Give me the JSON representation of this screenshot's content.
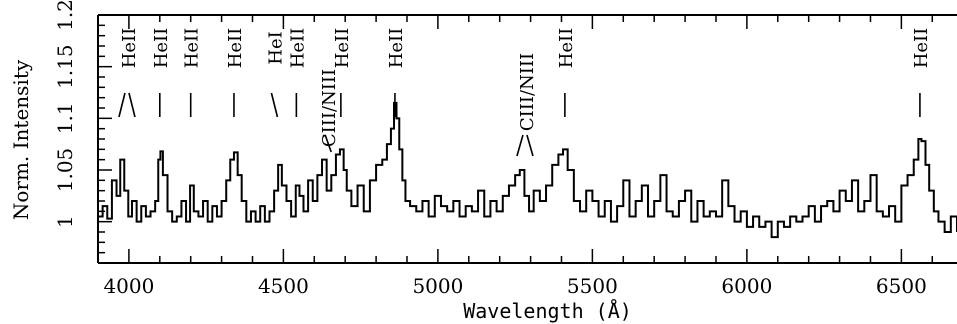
{
  "chart_data": {
    "type": "line",
    "title": "",
    "xlabel": "Wavelength (Å)",
    "ylabel": "Norm. Intensity",
    "xlim": [
      3900,
      6680
    ],
    "ylim": [
      0.96,
      1.2
    ],
    "x_ticks": [
      4000,
      4500,
      5000,
      5500,
      6000,
      6500
    ],
    "x_tick_labels": [
      "4000",
      "4500",
      "5000",
      "5500",
      "6000",
      "6500"
    ],
    "y_ticks": [
      1.0,
      1.05,
      1.1,
      1.15,
      1.2
    ],
    "y_tick_labels": [
      "1",
      "1.05",
      "1.1",
      "1.15",
      "1.2"
    ],
    "grid": false,
    "line_ids": [
      {
        "label": "HeII",
        "wavelengths": [
          3968,
          4026
        ],
        "mark": "pair"
      },
      {
        "label": "HeII",
        "wavelengths": [
          4100
        ],
        "mark": "vertical"
      },
      {
        "label": "HeII",
        "wavelengths": [
          4200
        ],
        "mark": "vertical"
      },
      {
        "label": "HeII",
        "wavelengths": [
          4340
        ],
        "mark": "vertical"
      },
      {
        "label": "HeI",
        "wavelengths": [
          4471
        ],
        "mark": "slant"
      },
      {
        "label": "HeII",
        "wavelengths": [
          4542
        ],
        "mark": "vertical"
      },
      {
        "label": "CIII/NIII",
        "wavelengths": [
          4645
        ],
        "mark": "slant-low"
      },
      {
        "label": "HeII",
        "wavelengths": [
          4686
        ],
        "mark": "vertical"
      },
      {
        "label": "HeII",
        "wavelengths": [
          4861
        ],
        "mark": "vertical"
      },
      {
        "label": "CIII/NIII",
        "wavelengths": [
          5270,
          5300
        ],
        "mark": "pair-low"
      },
      {
        "label": "HeII",
        "wavelengths": [
          5411
        ],
        "mark": "vertical"
      },
      {
        "label": "HeII",
        "wavelengths": [
          6560
        ],
        "mark": "vertical"
      }
    ],
    "series": [
      {
        "x": [
          3900,
          3915,
          3930,
          3945,
          3960,
          3972,
          3985,
          3998,
          4010,
          4025,
          4040,
          4055,
          4070,
          4085,
          4095,
          4102,
          4110,
          4125,
          4140,
          4155,
          4170,
          4185,
          4198,
          4210,
          4225,
          4240,
          4255,
          4270,
          4285,
          4300,
          4315,
          4328,
          4340,
          4352,
          4365,
          4380,
          4395,
          4410,
          4425,
          4440,
          4455,
          4470,
          4483,
          4495,
          4510,
          4525,
          4540,
          4552,
          4565,
          4580,
          4595,
          4610,
          4625,
          4640,
          4655,
          4670,
          4683,
          4695,
          4705,
          4720,
          4740,
          4760,
          4780,
          4800,
          4820,
          4835,
          4848,
          4858,
          4866,
          4875,
          4885,
          4895,
          4910,
          4930,
          4950,
          4970,
          4990,
          5010,
          5030,
          5050,
          5070,
          5090,
          5110,
          5130,
          5150,
          5170,
          5190,
          5210,
          5230,
          5250,
          5265,
          5280,
          5295,
          5310,
          5330,
          5350,
          5370,
          5390,
          5405,
          5420,
          5440,
          5460,
          5480,
          5500,
          5520,
          5540,
          5560,
          5580,
          5600,
          5620,
          5640,
          5660,
          5680,
          5700,
          5720,
          5740,
          5760,
          5780,
          5800,
          5820,
          5840,
          5860,
          5880,
          5900,
          5920,
          5940,
          5960,
          5980,
          6000,
          6020,
          6040,
          6060,
          6080,
          6100,
          6120,
          6140,
          6160,
          6180,
          6200,
          6220,
          6240,
          6260,
          6280,
          6300,
          6320,
          6340,
          6360,
          6380,
          6400,
          6420,
          6440,
          6460,
          6480,
          6500,
          6520,
          6540,
          6555,
          6565,
          6578,
          6590,
          6605,
          6620,
          6640,
          6660,
          6680
        ],
        "y": [
          1.005,
          1.015,
          1.003,
          1.04,
          1.025,
          1.06,
          1.03,
          1.005,
          1.02,
          1.0,
          1.015,
          1.005,
          1.01,
          1.02,
          1.06,
          1.068,
          1.045,
          1.01,
          1.0,
          1.005,
          1.02,
          1.0,
          1.035,
          1.01,
          1.005,
          1.02,
          1.0,
          1.015,
          1.005,
          1.02,
          1.04,
          1.06,
          1.067,
          1.045,
          1.02,
          1.0,
          1.01,
          1.0,
          1.015,
          1.0,
          1.01,
          1.03,
          1.055,
          1.035,
          1.02,
          1.005,
          1.035,
          1.025,
          1.01,
          1.04,
          1.02,
          1.045,
          1.06,
          1.03,
          1.045,
          1.065,
          1.07,
          1.05,
          1.03,
          1.015,
          1.035,
          1.01,
          1.04,
          1.055,
          1.06,
          1.075,
          1.09,
          1.115,
          1.1,
          1.07,
          1.04,
          1.02,
          1.015,
          1.01,
          1.02,
          1.005,
          1.025,
          1.015,
          1.01,
          1.02,
          1.005,
          1.015,
          1.01,
          1.03,
          1.005,
          1.02,
          1.01,
          1.025,
          1.035,
          1.045,
          1.05,
          1.025,
          1.01,
          1.03,
          1.02,
          1.035,
          1.055,
          1.065,
          1.07,
          1.05,
          1.02,
          1.01,
          1.03,
          1.02,
          1.005,
          1.02,
          1.0,
          1.015,
          1.04,
          1.005,
          1.02,
          1.035,
          1.005,
          1.02,
          1.045,
          1.01,
          1.005,
          1.02,
          1.03,
          1.0,
          1.02,
          1.005,
          1.01,
          1.005,
          1.04,
          1.015,
          1.0,
          1.01,
          0.995,
          1.005,
          0.995,
          1.0,
          0.985,
          1.0,
          0.995,
          1.005,
          1.0,
          1.005,
          1.015,
          1.0,
          1.015,
          1.02,
          1.01,
          1.03,
          1.02,
          1.04,
          1.01,
          1.02,
          1.045,
          1.01,
          1.005,
          1.015,
          1.0,
          1.035,
          1.045,
          1.06,
          1.08,
          1.078,
          1.055,
          1.03,
          1.01,
          1.0,
          0.99,
          1.005,
          0.99
        ]
      }
    ]
  }
}
